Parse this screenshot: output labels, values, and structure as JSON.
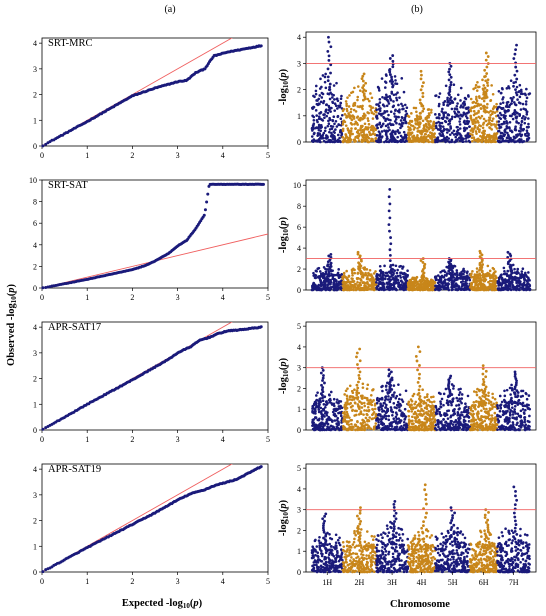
{
  "figure": {
    "col_a_label": "(a)",
    "col_b_label": "(b)",
    "qq_xlabel": "Expected -log10(p)",
    "qq_ylabel": "Observed -log10(p)",
    "man_xlabel": "Chromosome",
    "man_ylabel": "-log10(p)"
  },
  "colors": {
    "point_blue": "#1a1a7a",
    "point_orange": "#c8861a",
    "reference_line": "#f06060",
    "threshold_line": "#f06060"
  },
  "chart_data": [
    {
      "type": "scatter",
      "title": "SRT-MRC",
      "xlabel": "",
      "ylabel": "",
      "xlim": [
        0,
        5
      ],
      "ylim": [
        0,
        4.2
      ],
      "xticks": [
        "0",
        "1",
        "2",
        "3",
        "4",
        "5"
      ],
      "yticks": [
        "0",
        "1",
        "2",
        "3",
        "4"
      ],
      "reference_line": true,
      "qq_profile": [
        [
          0,
          0
        ],
        [
          1,
          0.95
        ],
        [
          1.5,
          1.45
        ],
        [
          2,
          1.95
        ],
        [
          2.5,
          2.25
        ],
        [
          3,
          2.5
        ],
        [
          3.2,
          2.55
        ],
        [
          3.4,
          2.85
        ],
        [
          3.6,
          3.0
        ],
        [
          3.8,
          3.5
        ],
        [
          3.9,
          3.55
        ],
        [
          4.1,
          3.65
        ],
        [
          4.4,
          3.75
        ],
        [
          4.85,
          3.9
        ]
      ]
    },
    {
      "type": "scatter",
      "title": "SRT-SAT",
      "xlabel": "",
      "ylabel": "",
      "xlim": [
        0,
        5
      ],
      "ylim": [
        0,
        10
      ],
      "xticks": [
        "0",
        "1",
        "2",
        "3",
        "4",
        "5"
      ],
      "yticks": [
        "0",
        "2",
        "4",
        "6",
        "8",
        "10"
      ],
      "reference_line": true,
      "qq_profile": [
        [
          0,
          0
        ],
        [
          1,
          0.8
        ],
        [
          1.5,
          1.25
        ],
        [
          2,
          1.7
        ],
        [
          2.3,
          2.1
        ],
        [
          2.5,
          2.5
        ],
        [
          2.8,
          3.2
        ],
        [
          3.0,
          3.9
        ],
        [
          3.2,
          4.4
        ],
        [
          3.4,
          5.5
        ],
        [
          3.6,
          6.8
        ],
        [
          3.7,
          9.6
        ],
        [
          4.0,
          9.6
        ],
        [
          4.3,
          9.6
        ],
        [
          4.9,
          9.6
        ]
      ]
    },
    {
      "type": "scatter",
      "title": "APR-SAT17",
      "xlabel": "",
      "ylabel": "",
      "xlim": [
        0,
        5
      ],
      "ylim": [
        0,
        4.2
      ],
      "xticks": [
        "0",
        "1",
        "2",
        "3",
        "4",
        "5"
      ],
      "yticks": [
        "0",
        "1",
        "2",
        "3",
        "4"
      ],
      "reference_line": true,
      "qq_profile": [
        [
          0,
          0
        ],
        [
          1,
          1.0
        ],
        [
          2,
          1.95
        ],
        [
          2.8,
          2.75
        ],
        [
          3.0,
          3.0
        ],
        [
          3.3,
          3.25
        ],
        [
          3.5,
          3.5
        ],
        [
          3.7,
          3.6
        ],
        [
          3.9,
          3.75
        ],
        [
          4.1,
          3.85
        ],
        [
          4.4,
          3.9
        ],
        [
          4.85,
          4.0
        ]
      ]
    },
    {
      "type": "scatter",
      "title": "APR-SAT19",
      "xlabel": "Expected -log10(p)",
      "ylabel": "",
      "xlim": [
        0,
        5
      ],
      "ylim": [
        0,
        4.2
      ],
      "xticks": [
        "0",
        "1",
        "2",
        "3",
        "4",
        "5"
      ],
      "yticks": [
        "0",
        "1",
        "2",
        "3",
        "4"
      ],
      "reference_line": true,
      "qq_profile": [
        [
          0,
          0
        ],
        [
          1,
          0.95
        ],
        [
          2,
          1.85
        ],
        [
          2.5,
          2.3
        ],
        [
          3,
          2.8
        ],
        [
          3.3,
          3.05
        ],
        [
          3.6,
          3.2
        ],
        [
          3.8,
          3.35
        ],
        [
          4.0,
          3.45
        ],
        [
          4.3,
          3.6
        ],
        [
          4.85,
          4.1
        ]
      ]
    },
    {
      "type": "scatter",
      "title": "",
      "xlabel": "",
      "ylabel": "",
      "ylim": [
        0,
        4.2
      ],
      "yticks": [
        "0",
        "1",
        "2",
        "3",
        "4"
      ],
      "threshold": 3,
      "chromosomes": [
        "1H",
        "2H",
        "3H",
        "4H",
        "5H",
        "6H",
        "7H"
      ],
      "chrom_max": [
        4.0,
        2.6,
        3.3,
        2.7,
        3.0,
        3.4,
        3.7
      ],
      "chrom_base": [
        2.0,
        1.6,
        2.1,
        1.1,
        1.8,
        1.9,
        1.8
      ]
    },
    {
      "type": "scatter",
      "title": "",
      "xlabel": "",
      "ylabel": "",
      "ylim": [
        0,
        10.5
      ],
      "yticks": [
        "0",
        "2",
        "4",
        "6",
        "8",
        "10"
      ],
      "threshold": 3,
      "chromosomes": [
        "1H",
        "2H",
        "3H",
        "4H",
        "5H",
        "6H",
        "7H"
      ],
      "chrom_max": [
        3.4,
        3.6,
        9.6,
        3.0,
        3.0,
        3.7,
        3.6
      ],
      "chrom_base": [
        1.8,
        1.7,
        2.0,
        1.0,
        1.8,
        1.8,
        1.8
      ]
    },
    {
      "type": "scatter",
      "title": "",
      "xlabel": "",
      "ylabel": "",
      "ylim": [
        0,
        5.2
      ],
      "yticks": [
        "0",
        "1",
        "2",
        "3",
        "4",
        "5"
      ],
      "threshold": 3,
      "chromosomes": [
        "1H",
        "2H",
        "3H",
        "4H",
        "5H",
        "6H",
        "7H"
      ],
      "chrom_max": [
        3.0,
        3.9,
        2.9,
        4.0,
        2.6,
        3.1,
        2.8
      ],
      "chrom_base": [
        1.6,
        1.8,
        1.8,
        1.5,
        1.6,
        1.6,
        1.6
      ]
    },
    {
      "type": "scatter",
      "title": "",
      "xlabel": "Chromosome",
      "ylabel": "",
      "ylim": [
        0,
        5.2
      ],
      "yticks": [
        "0",
        "1",
        "2",
        "3",
        "4",
        "5"
      ],
      "threshold": 3,
      "chromosomes": [
        "1H",
        "2H",
        "3H",
        "4H",
        "5H",
        "6H",
        "7H"
      ],
      "xticks": [
        "1H",
        "2H",
        "3H",
        "4H",
        "5H",
        "6H",
        "7H"
      ],
      "chrom_max": [
        2.8,
        3.1,
        3.4,
        4.2,
        3.1,
        3.0,
        4.1
      ],
      "chrom_base": [
        1.5,
        1.6,
        1.8,
        1.6,
        1.7,
        1.6,
        1.7
      ]
    }
  ]
}
